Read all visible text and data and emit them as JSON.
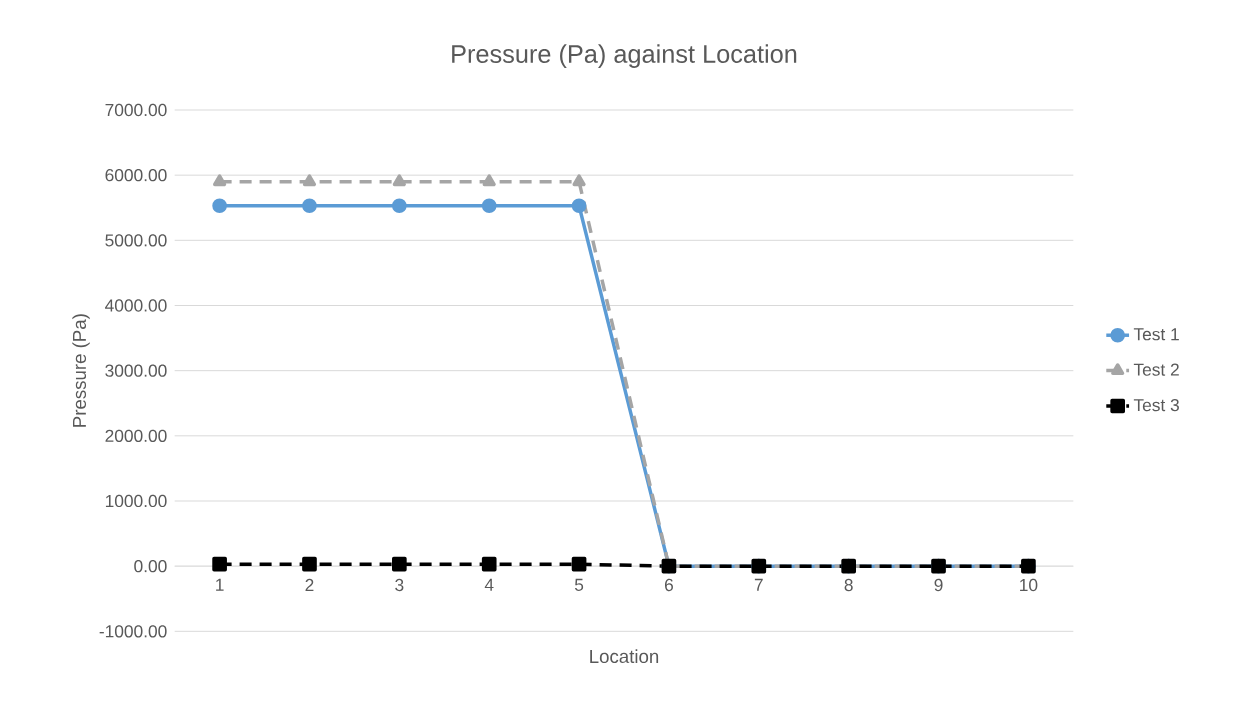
{
  "chart_data": {
    "type": "line",
    "title": "Pressure (Pa) against Location",
    "xlabel": "Location",
    "ylabel": "Pressure (Pa)",
    "categories": [
      "1",
      "2",
      "3",
      "4",
      "5",
      "6",
      "7",
      "8",
      "9",
      "10"
    ],
    "series": [
      {
        "name": "Test 1",
        "color": "#5b9bd5",
        "marker": "circle",
        "line_style": "solid",
        "values": [
          5530,
          5530,
          5530,
          5530,
          5530,
          0,
          0,
          0,
          0,
          0
        ]
      },
      {
        "name": "Test 2",
        "color": "#a5a5a5",
        "marker": "triangle",
        "line_style": "dashed",
        "values": [
          5900,
          5900,
          5900,
          5900,
          5900,
          0,
          0,
          0,
          0,
          0
        ]
      },
      {
        "name": "Test 3",
        "color": "#000000",
        "marker": "square",
        "line_style": "dashed",
        "values": [
          30,
          30,
          30,
          30,
          30,
          0,
          0,
          0,
          0,
          0
        ]
      }
    ],
    "ylim": [
      -1000,
      7000
    ],
    "yticks": [
      {
        "value": -1000,
        "label": "-1000.00"
      },
      {
        "value": 0,
        "label": "0.00"
      },
      {
        "value": 1000,
        "label": "1000.00"
      },
      {
        "value": 2000,
        "label": "2000.00"
      },
      {
        "value": 3000,
        "label": "3000.00"
      },
      {
        "value": 4000,
        "label": "4000.00"
      },
      {
        "value": 5000,
        "label": "5000.00"
      },
      {
        "value": 6000,
        "label": "6000.00"
      },
      {
        "value": 7000,
        "label": "7000.00"
      }
    ],
    "grid": "y",
    "legend": "right"
  }
}
